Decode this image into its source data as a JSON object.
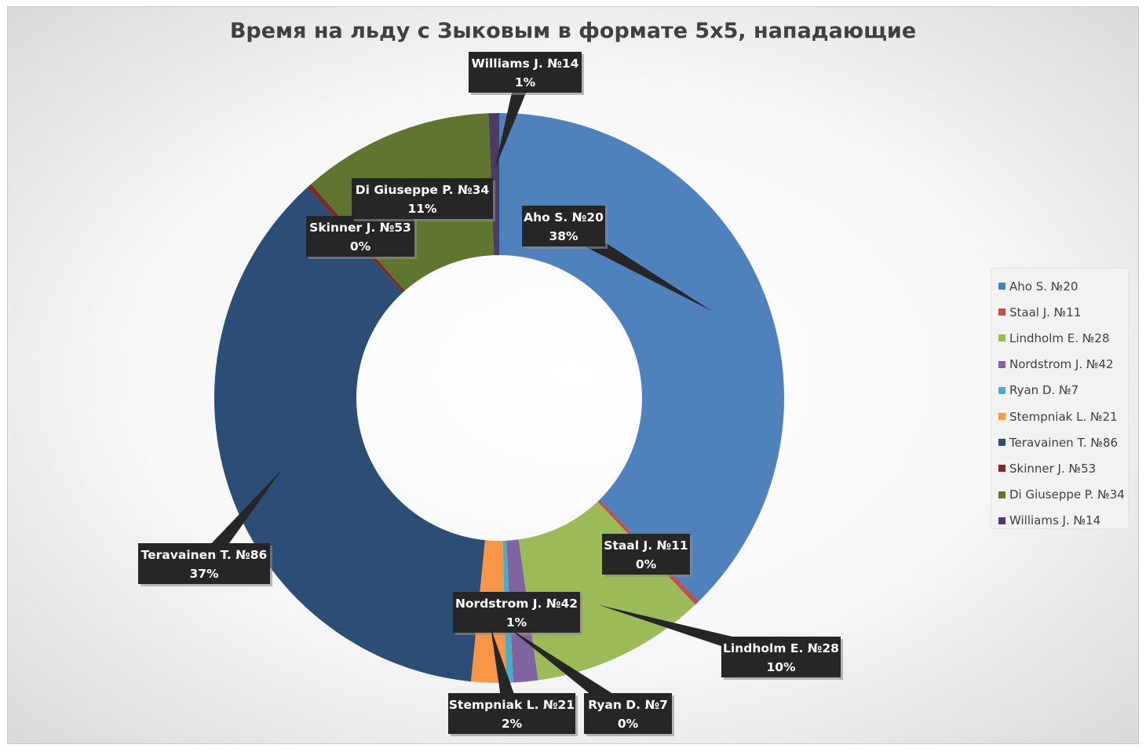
{
  "chart_data": {
    "type": "pie",
    "variant": "doughnut",
    "title": "Время на льду с Зыковым в формате 5х5, нападающие",
    "legend_position": "right",
    "slices": [
      {
        "name": "Aho S. №20",
        "value": 38,
        "label": "38%",
        "color": "#4f81bd"
      },
      {
        "name": "Staal J. №11",
        "value": 0.3,
        "label": "0%",
        "color": "#c0504d"
      },
      {
        "name": "Lindholm E. №28",
        "value": 10,
        "label": "10%",
        "color": "#9bbb59"
      },
      {
        "name": "Nordstrom J. №42",
        "value": 1.4,
        "label": "1%",
        "color": "#8064a2"
      },
      {
        "name": "Ryan D. №7",
        "value": 0.4,
        "label": "0%",
        "color": "#4bacc6"
      },
      {
        "name": "Stempniak L. №21",
        "value": 2,
        "label": "2%",
        "color": "#f79646"
      },
      {
        "name": "Teravainen T. №86",
        "value": 37,
        "label": "37%",
        "color": "#2c4d75"
      },
      {
        "name": "Skinner J. №53",
        "value": 0.3,
        "label": "0%",
        "color": "#772c2a"
      },
      {
        "name": "Di Giuseppe P. №34",
        "value": 11,
        "label": "11%",
        "color": "#5f7530"
      },
      {
        "name": "Williams J. №14",
        "value": 0.6,
        "label": "1%",
        "color": "#4d3b62"
      }
    ]
  }
}
